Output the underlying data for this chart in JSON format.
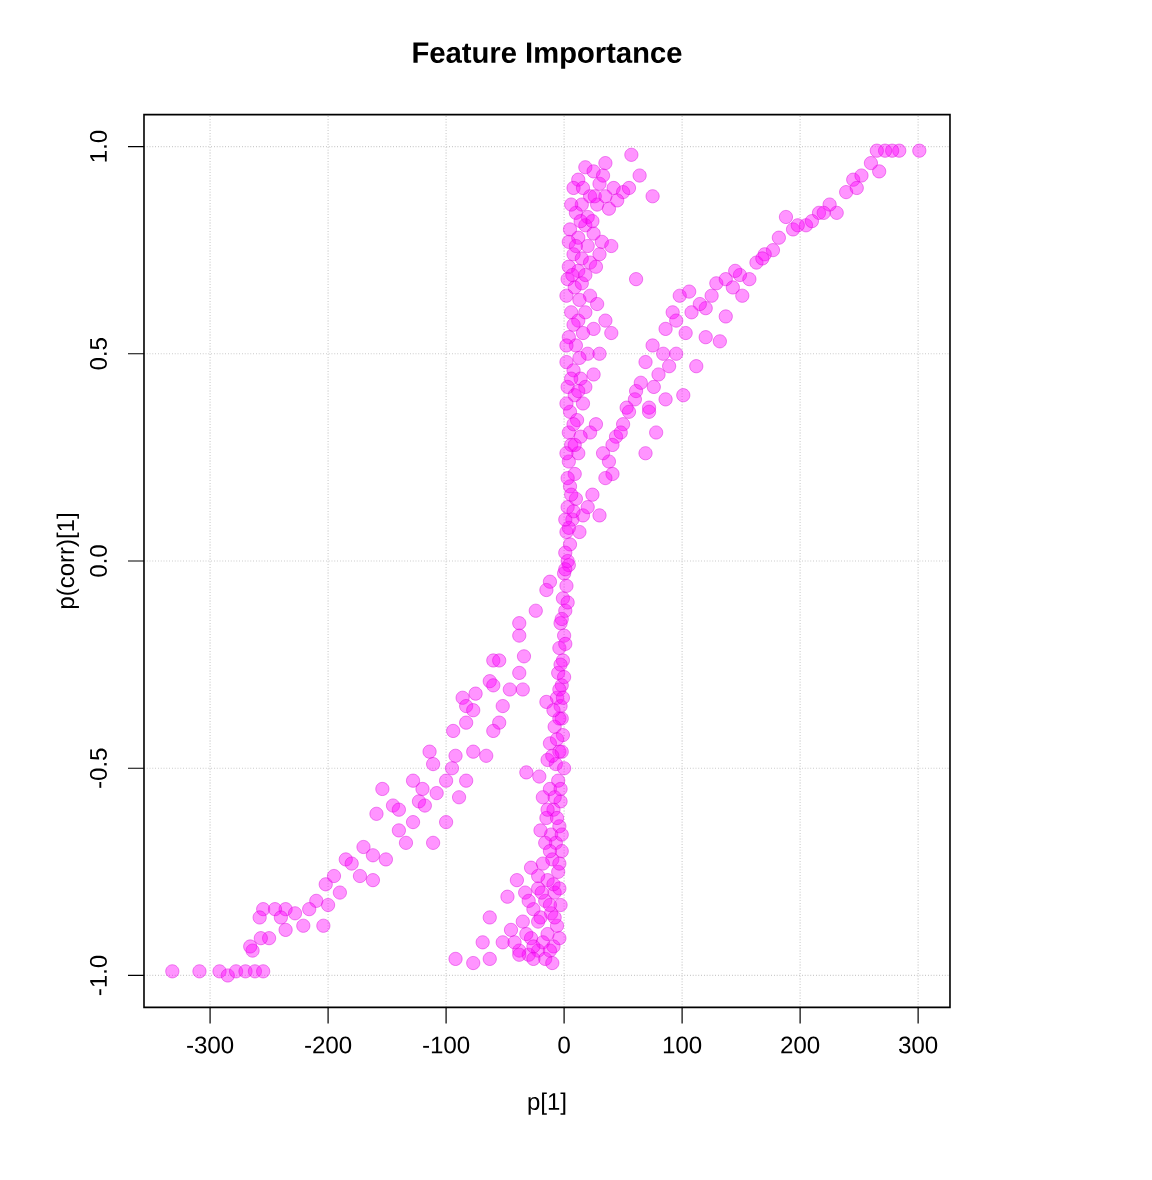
{
  "chart_data": {
    "type": "scatter",
    "title": "Feature Importance",
    "xlabel": "p[1]",
    "ylabel": "p(corr)[1]",
    "color": "#ff00ff",
    "marker": "circle",
    "grid": true,
    "xlim": [
      -356,
      327
    ],
    "ylim": [
      -1.077,
      1.077
    ],
    "xticks": [
      -300,
      -200,
      -100,
      0,
      100,
      200,
      300
    ],
    "yticks": [
      {
        "value": -1,
        "label": "-1.0"
      },
      {
        "value": -0.5,
        "label": "-0.5"
      },
      {
        "value": 0,
        "label": "0.0"
      },
      {
        "value": 0.5,
        "label": "0.5"
      },
      {
        "value": 1,
        "label": "1.0"
      }
    ],
    "x": [
      301,
      284,
      278,
      272,
      265,
      267,
      245,
      239,
      231,
      216,
      205,
      188,
      194,
      177,
      163,
      149,
      157,
      129,
      137,
      151,
      120,
      137,
      98,
      106,
      92,
      86,
      103,
      120,
      132,
      75,
      69,
      89,
      112,
      61,
      72,
      86,
      101,
      53,
      27,
      44,
      78,
      55,
      72,
      41,
      38,
      41,
      24,
      30,
      16,
      13,
      69,
      210,
      225,
      252,
      170,
      182,
      143,
      115,
      95,
      80,
      65,
      50,
      35,
      57,
      75,
      64,
      35,
      61,
      40,
      30,
      12,
      18,
      25,
      30,
      42,
      50,
      22,
      8,
      15,
      28,
      38,
      45,
      10,
      20,
      55,
      33,
      5,
      12,
      18,
      25,
      32,
      40,
      8,
      15,
      22,
      30,
      4,
      12,
      20,
      3,
      9,
      15,
      22,
      28,
      6,
      12,
      18,
      25,
      4,
      10,
      16,
      35,
      20,
      2,
      8,
      14,
      3,
      9,
      16,
      5,
      11,
      22,
      4,
      18,
      25,
      6,
      12,
      4,
      9,
      5,
      10,
      3,
      7,
      2,
      5,
      1,
      4,
      0,
      2,
      -1,
      1,
      -3,
      0,
      -4,
      -1,
      -5,
      -2,
      -6,
      -3,
      -12,
      -15,
      -24,
      -38,
      -38,
      -60,
      -55,
      -38,
      -63,
      -46,
      -35,
      -86,
      -75,
      -83,
      -52,
      -15,
      -34,
      -60,
      -77,
      -83,
      -94,
      -55,
      -60,
      -114,
      -111,
      -92,
      -77,
      -66,
      -128,
      -100,
      -83,
      -154,
      -145,
      -123,
      -118,
      -89,
      -100,
      -159,
      -128,
      -111,
      -134,
      -162,
      -185,
      -151,
      -173,
      -162,
      -202,
      -190,
      -210,
      -216,
      -236,
      -255,
      -221,
      -236,
      -250,
      -257,
      -264,
      -204,
      -245,
      -228,
      -140,
      -108,
      -170,
      -195,
      -332,
      -309,
      -292,
      -285,
      -278,
      -270,
      -262,
      -255,
      -2,
      -8,
      -1,
      -12,
      -4,
      -7,
      0,
      -32,
      -21,
      -14,
      -5,
      -12,
      -18,
      -3,
      -9,
      -15,
      -4,
      -11,
      -20,
      -7,
      -2,
      -10,
      -18,
      -28,
      -5,
      -14,
      -40,
      -22,
      -8,
      -33,
      -48,
      -16,
      -3,
      -26,
      -11,
      -20,
      -35,
      -6,
      -45,
      -14,
      -28,
      -52,
      -9,
      -22,
      -38,
      -16,
      -30,
      -92,
      -77,
      -63,
      -69,
      -63,
      -26,
      -38,
      16,
      26,
      6,
      35,
      14,
      24,
      4,
      10,
      27,
      7,
      18,
      2,
      13,
      8,
      2,
      13,
      6,
      12,
      2,
      8,
      14,
      2,
      9,
      6,
      3,
      8,
      4,
      1,
      3,
      1,
      3,
      -2,
      1,
      -3,
      0,
      -4,
      -1,
      -4,
      -9,
      -6,
      -2,
      -10,
      -3,
      -8,
      -14,
      -6,
      -2,
      -16,
      -12,
      -4,
      -22,
      -9,
      -19,
      -4,
      -30,
      -12,
      -22,
      -8,
      -32,
      -18,
      -4,
      -12,
      -26,
      -42,
      -10,
      -95,
      -120,
      -140,
      -180,
      -200,
      -240,
      -258,
      -266,
      260,
      248,
      220,
      198,
      168,
      145,
      125,
      108,
      95,
      84,
      76,
      60,
      48,
      33,
      20
    ],
    "values": [
      0.99,
      0.99,
      0.99,
      0.99,
      0.99,
      0.94,
      0.92,
      0.89,
      0.84,
      0.84,
      0.81,
      0.83,
      0.8,
      0.75,
      0.72,
      0.69,
      0.68,
      0.67,
      0.68,
      0.64,
      0.61,
      0.59,
      0.64,
      0.65,
      0.6,
      0.56,
      0.55,
      0.54,
      0.53,
      0.52,
      0.48,
      0.47,
      0.47,
      0.41,
      0.37,
      0.39,
      0.4,
      0.37,
      0.33,
      0.3,
      0.31,
      0.36,
      0.36,
      0.28,
      0.24,
      0.21,
      0.16,
      0.11,
      0.11,
      0.07,
      0.26,
      0.82,
      0.86,
      0.93,
      0.74,
      0.78,
      0.66,
      0.62,
      0.5,
      0.45,
      0.43,
      0.33,
      0.2,
      0.98,
      0.88,
      0.93,
      0.96,
      0.68,
      0.55,
      0.5,
      0.92,
      0.95,
      0.94,
      0.91,
      0.9,
      0.89,
      0.88,
      0.9,
      0.86,
      0.86,
      0.85,
      0.87,
      0.84,
      0.83,
      0.9,
      0.93,
      0.8,
      0.78,
      0.81,
      0.79,
      0.77,
      0.76,
      0.74,
      0.73,
      0.72,
      0.74,
      0.71,
      0.7,
      0.76,
      0.68,
      0.66,
      0.67,
      0.64,
      0.62,
      0.6,
      0.58,
      0.6,
      0.56,
      0.54,
      0.52,
      0.55,
      0.58,
      0.5,
      0.48,
      0.46,
      0.44,
      0.42,
      0.4,
      0.38,
      0.36,
      0.34,
      0.31,
      0.31,
      0.42,
      0.45,
      0.28,
      0.26,
      0.24,
      0.21,
      0.18,
      0.15,
      0.13,
      0.1,
      0.07,
      0.04,
      0.02,
      -0.01,
      -0.03,
      -0.06,
      -0.09,
      -0.12,
      -0.15,
      -0.18,
      -0.21,
      -0.24,
      -0.27,
      -0.3,
      -0.33,
      -0.35,
      -0.05,
      -0.07,
      -0.12,
      -0.15,
      -0.18,
      -0.24,
      -0.24,
      -0.27,
      -0.29,
      -0.31,
      -0.31,
      -0.33,
      -0.32,
      -0.35,
      -0.35,
      -0.34,
      -0.23,
      -0.3,
      -0.36,
      -0.39,
      -0.41,
      -0.39,
      -0.41,
      -0.46,
      -0.49,
      -0.47,
      -0.46,
      -0.47,
      -0.53,
      -0.53,
      -0.53,
      -0.55,
      -0.59,
      -0.58,
      -0.59,
      -0.57,
      -0.63,
      -0.61,
      -0.63,
      -0.68,
      -0.68,
      -0.71,
      -0.72,
      -0.72,
      -0.76,
      -0.77,
      -0.78,
      -0.8,
      -0.82,
      -0.84,
      -0.84,
      -0.84,
      -0.88,
      -0.89,
      -0.91,
      -0.91,
      -0.94,
      -0.88,
      -0.84,
      -0.85,
      -0.6,
      -0.56,
      -0.69,
      -0.76,
      -0.99,
      -0.99,
      -0.99,
      -1.0,
      -0.99,
      -0.99,
      -0.99,
      -0.99,
      -0.38,
      -0.4,
      -0.42,
      -0.44,
      -0.46,
      -0.49,
      -0.5,
      -0.51,
      -0.52,
      -0.48,
      -0.53,
      -0.55,
      -0.57,
      -0.58,
      -0.6,
      -0.62,
      -0.64,
      -0.66,
      -0.65,
      -0.68,
      -0.7,
      -0.72,
      -0.73,
      -0.74,
      -0.75,
      -0.77,
      -0.77,
      -0.79,
      -0.8,
      -0.8,
      -0.81,
      -0.82,
      -0.83,
      -0.84,
      -0.85,
      -0.86,
      -0.87,
      -0.88,
      -0.89,
      -0.9,
      -0.91,
      -0.92,
      -0.93,
      -0.94,
      -0.94,
      -0.96,
      -0.95,
      -0.96,
      -0.97,
      -0.86,
      -0.92,
      -0.96,
      -0.96,
      -0.95,
      0.9,
      0.88,
      0.86,
      0.88,
      0.82,
      0.82,
      0.77,
      0.76,
      0.71,
      0.69,
      0.69,
      0.64,
      0.63,
      0.57,
      0.52,
      0.49,
      0.44,
      0.41,
      0.38,
      0.33,
      0.3,
      0.26,
      0.28,
      0.16,
      0.2,
      0.12,
      0.08,
      0.1,
      0.0,
      -0.02,
      -0.1,
      -0.14,
      -0.2,
      -0.25,
      -0.28,
      -0.31,
      -0.33,
      -0.38,
      -0.36,
      -0.43,
      -0.46,
      -0.47,
      -0.55,
      -0.57,
      -0.6,
      -0.62,
      -0.66,
      -0.68,
      -0.7,
      -0.73,
      -0.76,
      -0.78,
      -0.8,
      -0.79,
      -0.82,
      -0.83,
      -0.87,
      -0.86,
      -0.9,
      -0.92,
      -0.91,
      -0.94,
      -0.93,
      -0.92,
      -0.97,
      -0.5,
      -0.55,
      -0.65,
      -0.73,
      -0.83,
      -0.86,
      -0.86,
      -0.93,
      0.96,
      0.9,
      0.84,
      0.81,
      0.73,
      0.7,
      0.64,
      0.6,
      0.58,
      0.5,
      0.42,
      0.39,
      0.31,
      0.26,
      0.13
    ]
  }
}
